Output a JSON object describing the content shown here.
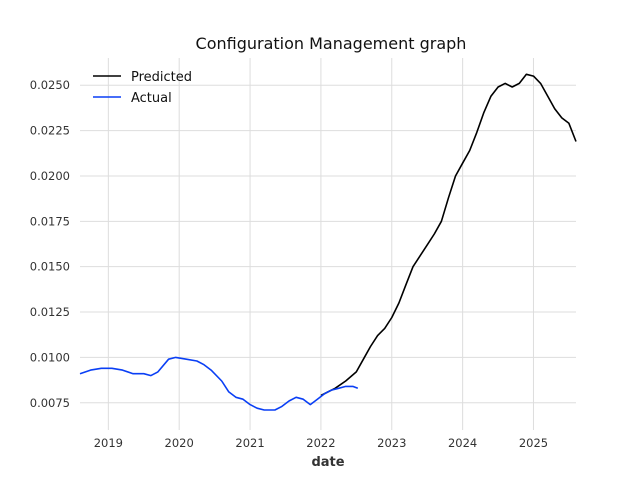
{
  "chart_data": {
    "type": "line",
    "title": "Configuration Management graph",
    "xlabel": "date",
    "ylabel": "",
    "x_ticks": [
      "2019",
      "2020",
      "2021",
      "2022",
      "2023",
      "2024",
      "2025"
    ],
    "y_ticks": [
      "0.0075",
      "0.0100",
      "0.0125",
      "0.0150",
      "0.0175",
      "0.0200",
      "0.0225",
      "0.0250"
    ],
    "xlim": [
      2018.6,
      2025.6
    ],
    "ylim": [
      0.006,
      0.0265
    ],
    "grid": true,
    "legend_position": "top-left",
    "series": [
      {
        "name": "Predicted",
        "color": "#000000",
        "points": [
          [
            2022.0,
            0.0079
          ],
          [
            2022.1,
            0.0081
          ],
          [
            2022.2,
            0.0083
          ],
          [
            2022.35,
            0.0087
          ],
          [
            2022.5,
            0.0092
          ],
          [
            2022.6,
            0.0099
          ],
          [
            2022.7,
            0.0106
          ],
          [
            2022.8,
            0.0112
          ],
          [
            2022.9,
            0.0116
          ],
          [
            2023.0,
            0.0122
          ],
          [
            2023.1,
            0.013
          ],
          [
            2023.2,
            0.014
          ],
          [
            2023.3,
            0.015
          ],
          [
            2023.4,
            0.0156
          ],
          [
            2023.5,
            0.0162
          ],
          [
            2023.6,
            0.0168
          ],
          [
            2023.7,
            0.0175
          ],
          [
            2023.8,
            0.0188
          ],
          [
            2023.9,
            0.02
          ],
          [
            2024.0,
            0.0207
          ],
          [
            2024.1,
            0.0214
          ],
          [
            2024.2,
            0.0224
          ],
          [
            2024.3,
            0.0235
          ],
          [
            2024.4,
            0.0244
          ],
          [
            2024.5,
            0.0249
          ],
          [
            2024.6,
            0.0251
          ],
          [
            2024.7,
            0.0249
          ],
          [
            2024.8,
            0.0251
          ],
          [
            2024.9,
            0.0256
          ],
          [
            2025.0,
            0.0255
          ],
          [
            2025.1,
            0.0251
          ],
          [
            2025.2,
            0.0244
          ],
          [
            2025.3,
            0.0237
          ],
          [
            2025.4,
            0.0232
          ],
          [
            2025.5,
            0.0229
          ],
          [
            2025.6,
            0.0219
          ]
        ]
      },
      {
        "name": "Actual",
        "color": "#0a3ff5",
        "points": [
          [
            2018.6,
            0.0091
          ],
          [
            2018.75,
            0.0093
          ],
          [
            2018.9,
            0.0094
          ],
          [
            2019.05,
            0.0094
          ],
          [
            2019.2,
            0.0093
          ],
          [
            2019.35,
            0.0091
          ],
          [
            2019.5,
            0.0091
          ],
          [
            2019.6,
            0.009
          ],
          [
            2019.7,
            0.0092
          ],
          [
            2019.85,
            0.0099
          ],
          [
            2019.95,
            0.01
          ],
          [
            2020.1,
            0.0099
          ],
          [
            2020.25,
            0.0098
          ],
          [
            2020.35,
            0.0096
          ],
          [
            2020.45,
            0.0093
          ],
          [
            2020.6,
            0.0087
          ],
          [
            2020.7,
            0.0081
          ],
          [
            2020.8,
            0.0078
          ],
          [
            2020.9,
            0.0077
          ],
          [
            2021.0,
            0.0074
          ],
          [
            2021.1,
            0.0072
          ],
          [
            2021.2,
            0.0071
          ],
          [
            2021.35,
            0.0071
          ],
          [
            2021.45,
            0.0073
          ],
          [
            2021.55,
            0.0076
          ],
          [
            2021.65,
            0.0078
          ],
          [
            2021.75,
            0.0077
          ],
          [
            2021.85,
            0.0074
          ],
          [
            2021.95,
            0.0077
          ],
          [
            2022.05,
            0.008
          ],
          [
            2022.15,
            0.0082
          ],
          [
            2022.25,
            0.0083
          ],
          [
            2022.35,
            0.0084
          ],
          [
            2022.45,
            0.0084
          ],
          [
            2022.52,
            0.0083
          ]
        ]
      }
    ]
  }
}
